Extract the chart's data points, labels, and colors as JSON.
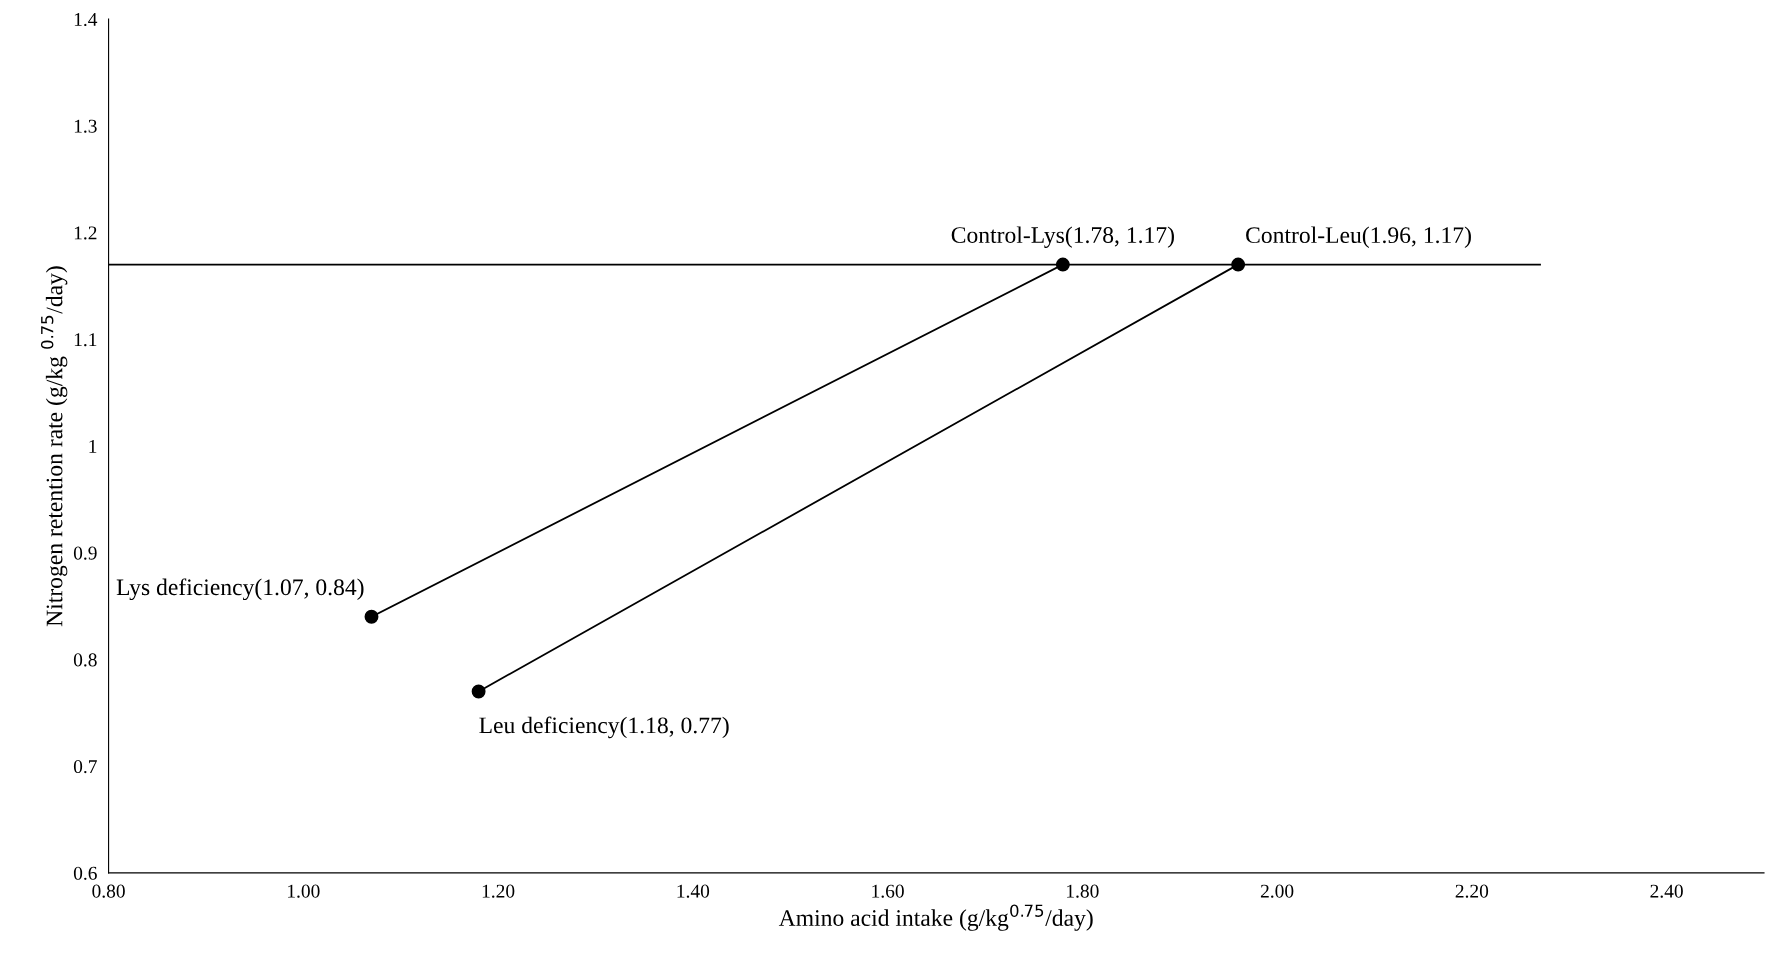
{
  "chart_data": {
    "type": "line",
    "xlabel": "Amino acid intake (g/kg$^{0.75}$/day)",
    "ylabel": "Nitrogen retention rate (g/kg $^{0.75}$/day)",
    "series": [
      {
        "color": "#000000",
        "x": [
          1.07,
          1.78
        ],
        "values": [
          0.84,
          1.17
        ],
        "marker": "circle"
      },
      {
        "color": "#000000",
        "x": [
          1.18,
          1.96
        ],
        "values": [
          0.77,
          1.17
        ],
        "marker": "circle"
      },
      {
        "color": "#000000",
        "x": [
          0.8,
          2.27
        ],
        "values": [
          1.17,
          1.17
        ],
        "marker": "none"
      }
    ],
    "annotations": [
      {
        "text": "Lys deficiency(1.07, 0.84)",
        "x": 1.07,
        "y": 0.84
      },
      {
        "text": "Control-Lys(1.78, 1.17)",
        "x": 1.78,
        "y": 1.17
      },
      {
        "text": "Leu deficiency(1.18, 0.77)",
        "x": 1.18,
        "y": 0.77
      },
      {
        "text": "Control-Leu(1.96, 1.17)",
        "x": 1.96,
        "y": 1.17
      }
    ],
    "xlim": [
      0.8,
      2.5
    ],
    "ylim": [
      0.6,
      1.4
    ],
    "xticks": [
      {
        "value": 0.8,
        "label": "0.80"
      },
      {
        "value": 1.0,
        "label": "1.00"
      },
      {
        "value": 1.2,
        "label": "1.20"
      },
      {
        "value": 1.4,
        "label": "1.40"
      },
      {
        "value": 1.6,
        "label": "1.60"
      },
      {
        "value": 1.8,
        "label": "1.80"
      },
      {
        "value": 2.0,
        "label": "2.00"
      },
      {
        "value": 2.2,
        "label": "2.20"
      },
      {
        "value": 2.4,
        "label": "2.40"
      }
    ],
    "yticks": [
      0.6,
      0.7,
      0.8,
      0.9,
      {
        "value": 1.0,
        "label": "1"
      },
      1.1,
      1.2,
      1.3,
      1.4
    ],
    "grid": false
  }
}
